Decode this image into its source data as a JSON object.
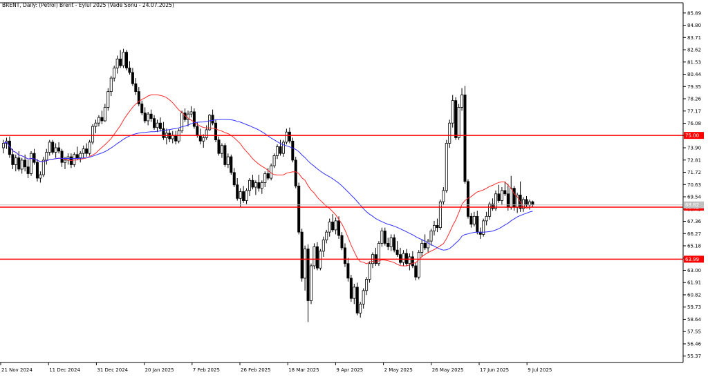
{
  "window": {
    "title": "BRENT, Daily:  (Petrol) Brent - Eylul 2025 (Vade Sonu - 24.07.2025)"
  },
  "chart_data": {
    "type": "candlestick",
    "symbol": "BRENT",
    "timeframe": "Daily",
    "instrument": "(Petrol) Brent - Eylul 2025 (Vade Sonu - 24.07.2025)",
    "ylim": [
      54.8,
      86.8
    ],
    "y_ticks": [
      55.37,
      56.46,
      57.55,
      58.64,
      59.73,
      60.82,
      61.91,
      63.0,
      64.09,
      65.18,
      66.27,
      67.36,
      68.45,
      69.54,
      70.63,
      71.72,
      72.81,
      73.9,
      74.99,
      76.08,
      77.17,
      78.26,
      79.35,
      80.44,
      81.53,
      82.62,
      83.71,
      84.8,
      85.89
    ],
    "x_ticks": [
      "21 Nov 2024",
      "11 Dec 2024",
      "31 Dec 2024",
      "20 Jan 2025",
      "7 Feb 2025",
      "26 Feb 2025",
      "18 Mar 2025",
      "9 Apr 2025",
      "2 May 2025",
      "26 May 2025",
      "17 Jun 2025",
      "9 Jul 2025"
    ],
    "horizontal_lines": [
      {
        "value": 75.0,
        "label": "75.00",
        "color": "#ff0000"
      },
      {
        "value": 68.62,
        "label": "68.62",
        "color": "#ff0000"
      },
      {
        "value": 63.99,
        "label": "63.99",
        "color": "#ff0000"
      }
    ],
    "current_price": {
      "value": 68.82,
      "label": "68.82",
      "color": "#c0c0c0"
    },
    "candles": [
      [
        73.9,
        74.6,
        73.4,
        74.3
      ],
      [
        74.3,
        74.8,
        73.8,
        74.5
      ],
      [
        74.5,
        74.9,
        73.0,
        73.3
      ],
      [
        73.3,
        73.8,
        72.0,
        72.4
      ],
      [
        72.4,
        73.3,
        71.8,
        73.0
      ],
      [
        73.0,
        73.6,
        71.8,
        72.0
      ],
      [
        72.0,
        73.0,
        71.6,
        72.8
      ],
      [
        72.8,
        73.3,
        71.8,
        72.2
      ],
      [
        72.2,
        72.8,
        71.2,
        71.6
      ],
      [
        71.6,
        73.6,
        71.4,
        73.4
      ],
      [
        73.4,
        73.8,
        72.4,
        72.6
      ],
      [
        72.6,
        72.9,
        70.9,
        71.2
      ],
      [
        71.2,
        71.8,
        70.8,
        71.5
      ],
      [
        71.5,
        73.1,
        71.3,
        72.8
      ],
      [
        72.8,
        73.8,
        72.4,
        73.5
      ],
      [
        73.5,
        74.6,
        73.2,
        74.4
      ],
      [
        74.4,
        74.6,
        73.3,
        73.5
      ],
      [
        73.5,
        74.3,
        73.0,
        73.9
      ],
      [
        73.9,
        74.4,
        73.4,
        73.6
      ],
      [
        73.6,
        73.8,
        72.2,
        72.6
      ],
      [
        72.6,
        73.1,
        72.0,
        72.8
      ],
      [
        72.8,
        73.4,
        72.4,
        73.1
      ],
      [
        73.1,
        73.4,
        72.1,
        72.4
      ],
      [
        72.4,
        73.5,
        72.2,
        73.3
      ],
      [
        73.3,
        74.0,
        72.8,
        73.0
      ],
      [
        73.0,
        73.6,
        72.6,
        73.4
      ],
      [
        73.4,
        74.1,
        73.0,
        73.8
      ],
      [
        73.8,
        74.3,
        73.1,
        73.4
      ],
      [
        73.4,
        74.6,
        73.2,
        74.4
      ],
      [
        74.4,
        76.0,
        74.2,
        75.8
      ],
      [
        75.8,
        76.4,
        75.2,
        76.1
      ],
      [
        76.1,
        76.8,
        75.8,
        76.6
      ],
      [
        76.6,
        77.2,
        76.0,
        76.3
      ],
      [
        76.3,
        77.8,
        76.2,
        77.5
      ],
      [
        77.5,
        79.2,
        77.2,
        78.9
      ],
      [
        78.9,
        80.3,
        78.5,
        80.1
      ],
      [
        80.1,
        81.2,
        79.8,
        81.0
      ],
      [
        81.0,
        82.1,
        80.5,
        81.8
      ],
      [
        81.8,
        82.6,
        81.0,
        81.2
      ],
      [
        81.2,
        82.7,
        81.0,
        82.4
      ],
      [
        82.4,
        82.6,
        80.8,
        81.0
      ],
      [
        81.0,
        81.6,
        80.4,
        80.6
      ],
      [
        80.6,
        81.0,
        79.4,
        79.6
      ],
      [
        79.6,
        80.1,
        78.6,
        78.9
      ],
      [
        78.9,
        79.3,
        77.6,
        77.8
      ],
      [
        77.8,
        78.1,
        76.8,
        77.0
      ],
      [
        77.0,
        77.5,
        76.1,
        76.3
      ],
      [
        76.3,
        77.1,
        75.9,
        76.9
      ],
      [
        76.9,
        77.3,
        76.2,
        76.5
      ],
      [
        76.5,
        76.8,
        75.5,
        75.7
      ],
      [
        75.7,
        76.4,
        75.3,
        76.1
      ],
      [
        76.1,
        76.6,
        75.4,
        75.6
      ],
      [
        75.6,
        76.2,
        74.6,
        74.8
      ],
      [
        74.8,
        75.6,
        74.2,
        75.2
      ],
      [
        75.2,
        75.5,
        74.4,
        74.7
      ],
      [
        74.7,
        75.4,
        74.3,
        75.0
      ],
      [
        75.0,
        75.4,
        74.2,
        74.5
      ],
      [
        74.5,
        75.6,
        74.3,
        75.4
      ],
      [
        75.4,
        77.2,
        75.2,
        77.0
      ],
      [
        77.0,
        77.4,
        76.2,
        76.4
      ],
      [
        76.4,
        77.2,
        75.8,
        76.9
      ],
      [
        76.9,
        77.6,
        76.6,
        77.1
      ],
      [
        77.1,
        77.4,
        75.6,
        75.8
      ],
      [
        75.8,
        76.2,
        74.8,
        75.0
      ],
      [
        75.0,
        75.6,
        74.2,
        74.5
      ],
      [
        74.5,
        75.1,
        73.9,
        74.8
      ],
      [
        74.8,
        75.9,
        74.6,
        75.5
      ],
      [
        75.5,
        76.9,
        75.4,
        76.8
      ],
      [
        76.8,
        77.3,
        75.9,
        76.1
      ],
      [
        76.1,
        76.4,
        74.4,
        74.6
      ],
      [
        74.6,
        74.9,
        73.2,
        73.4
      ],
      [
        73.4,
        74.3,
        73.0,
        74.1
      ],
      [
        74.1,
        74.3,
        72.2,
        72.4
      ],
      [
        72.4,
        73.4,
        72.1,
        73.1
      ],
      [
        73.1,
        73.3,
        71.5,
        71.7
      ],
      [
        71.7,
        72.1,
        70.4,
        70.6
      ],
      [
        70.6,
        71.2,
        69.2,
        69.4
      ],
      [
        69.4,
        70.3,
        68.6,
        70.0
      ],
      [
        70.0,
        70.5,
        69.0,
        69.2
      ],
      [
        69.2,
        70.3,
        68.9,
        70.1
      ],
      [
        70.1,
        71.2,
        69.6,
        71.0
      ],
      [
        71.0,
        71.5,
        70.2,
        70.4
      ],
      [
        70.4,
        71.0,
        69.7,
        70.8
      ],
      [
        70.8,
        71.5,
        70.0,
        70.3
      ],
      [
        70.3,
        71.0,
        69.8,
        70.8
      ],
      [
        70.8,
        71.8,
        70.4,
        71.6
      ],
      [
        71.6,
        72.1,
        71.0,
        71.2
      ],
      [
        71.2,
        72.5,
        71.0,
        72.3
      ],
      [
        72.3,
        73.4,
        72.1,
        73.2
      ],
      [
        73.2,
        74.2,
        72.9,
        74.0
      ],
      [
        74.0,
        74.6,
        73.2,
        73.4
      ],
      [
        73.4,
        74.6,
        73.1,
        74.4
      ],
      [
        74.4,
        75.6,
        74.2,
        75.3
      ],
      [
        75.3,
        75.7,
        74.3,
        74.5
      ],
      [
        74.5,
        74.8,
        72.6,
        72.8
      ],
      [
        72.8,
        73.1,
        70.3,
        70.5
      ],
      [
        70.5,
        70.8,
        66.2,
        66.4
      ],
      [
        66.4,
        66.7,
        62.0,
        62.3
      ],
      [
        62.3,
        65.2,
        61.2,
        64.9
      ],
      [
        64.9,
        65.3,
        58.4,
        60.3
      ],
      [
        60.3,
        63.6,
        60.0,
        63.4
      ],
      [
        63.4,
        65.4,
        63.1,
        65.1
      ],
      [
        65.1,
        65.5,
        63.0,
        63.2
      ],
      [
        63.2,
        64.9,
        63.0,
        64.7
      ],
      [
        64.7,
        66.0,
        64.2,
        65.7
      ],
      [
        65.7,
        66.6,
        65.4,
        66.4
      ],
      [
        66.4,
        67.6,
        66.0,
        67.3
      ],
      [
        67.3,
        68.0,
        66.4,
        66.6
      ],
      [
        66.6,
        67.7,
        66.2,
        67.4
      ],
      [
        67.4,
        67.8,
        65.8,
        66.1
      ],
      [
        66.1,
        66.4,
        64.8,
        65.0
      ],
      [
        65.0,
        65.4,
        63.3,
        63.6
      ],
      [
        63.6,
        64.1,
        62.0,
        62.3
      ],
      [
        62.3,
        62.6,
        60.2,
        60.5
      ],
      [
        60.5,
        61.8,
        60.0,
        61.5
      ],
      [
        61.5,
        61.9,
        59.0,
        59.2
      ],
      [
        59.2,
        60.2,
        58.8,
        60.0
      ],
      [
        60.0,
        61.4,
        59.6,
        61.2
      ],
      [
        61.2,
        62.4,
        60.8,
        62.2
      ],
      [
        62.2,
        63.8,
        61.9,
        63.6
      ],
      [
        63.6,
        64.6,
        63.2,
        64.4
      ],
      [
        64.4,
        65.0,
        63.4,
        63.6
      ],
      [
        63.6,
        65.6,
        63.4,
        65.4
      ],
      [
        65.4,
        66.8,
        65.1,
        66.5
      ],
      [
        66.5,
        66.8,
        65.2,
        65.4
      ],
      [
        65.4,
        65.9,
        64.8,
        65.1
      ],
      [
        65.1,
        66.2,
        64.7,
        65.9
      ],
      [
        65.9,
        66.2,
        64.6,
        64.8
      ],
      [
        64.8,
        65.6,
        64.2,
        64.4
      ],
      [
        64.4,
        65.0,
        63.5,
        63.7
      ],
      [
        63.7,
        64.8,
        63.4,
        64.5
      ],
      [
        64.5,
        64.9,
        63.4,
        63.6
      ],
      [
        63.6,
        64.5,
        63.0,
        64.2
      ],
      [
        64.2,
        64.7,
        63.2,
        63.4
      ],
      [
        63.4,
        63.7,
        62.1,
        62.4
      ],
      [
        62.4,
        64.8,
        62.2,
        64.6
      ],
      [
        64.6,
        65.7,
        64.2,
        65.4
      ],
      [
        65.4,
        66.2,
        64.8,
        65.0
      ],
      [
        65.0,
        65.8,
        64.6,
        65.6
      ],
      [
        65.6,
        66.7,
        65.2,
        66.5
      ],
      [
        66.5,
        67.4,
        66.1,
        67.0
      ],
      [
        67.0,
        67.6,
        66.4,
        66.8
      ],
      [
        66.8,
        69.3,
        66.6,
        69.1
      ],
      [
        69.1,
        70.4,
        68.8,
        70.1
      ],
      [
        70.1,
        74.6,
        69.9,
        74.3
      ],
      [
        74.3,
        76.4,
        73.9,
        76.1
      ],
      [
        76.1,
        78.6,
        75.7,
        78.1
      ],
      [
        78.1,
        78.4,
        74.6,
        74.8
      ],
      [
        74.8,
        77.8,
        74.6,
        77.5
      ],
      [
        77.5,
        79.2,
        77.2,
        78.6
      ],
      [
        78.6,
        79.4,
        70.7,
        70.9
      ],
      [
        70.9,
        71.1,
        67.6,
        67.8
      ],
      [
        67.8,
        68.1,
        66.8,
        67.1
      ],
      [
        67.1,
        68.2,
        66.9,
        67.8
      ],
      [
        67.8,
        68.3,
        66.2,
        66.4
      ],
      [
        66.4,
        66.8,
        65.8,
        66.2
      ],
      [
        66.2,
        67.6,
        66.0,
        67.4
      ],
      [
        67.4,
        68.2,
        67.0,
        67.8
      ],
      [
        67.8,
        69.1,
        67.5,
        68.9
      ],
      [
        68.9,
        69.4,
        68.3,
        68.5
      ],
      [
        68.5,
        70.1,
        68.3,
        69.8
      ],
      [
        69.8,
        70.6,
        69.0,
        69.2
      ],
      [
        69.2,
        70.4,
        68.8,
        70.1
      ],
      [
        70.1,
        70.9,
        69.6,
        69.8
      ],
      [
        69.8,
        70.7,
        68.3,
        68.6
      ],
      [
        68.6,
        71.4,
        68.4,
        70.3
      ],
      [
        70.3,
        70.5,
        68.3,
        68.6
      ],
      [
        68.6,
        69.9,
        68.1,
        69.7
      ],
      [
        69.7,
        70.9,
        68.2,
        68.5
      ],
      [
        68.5,
        69.5,
        68.2,
        69.3
      ],
      [
        69.3,
        69.6,
        68.6,
        68.8
      ],
      [
        68.8,
        69.3,
        68.4,
        69.1
      ],
      [
        69.1,
        69.2,
        68.6,
        68.82
      ]
    ],
    "moving_averages": [
      {
        "name": "MA fast",
        "color": "#ff2a2a",
        "period": 20
      },
      {
        "name": "MA slow",
        "color": "#3030ff",
        "period": 50
      }
    ],
    "grid": false
  }
}
